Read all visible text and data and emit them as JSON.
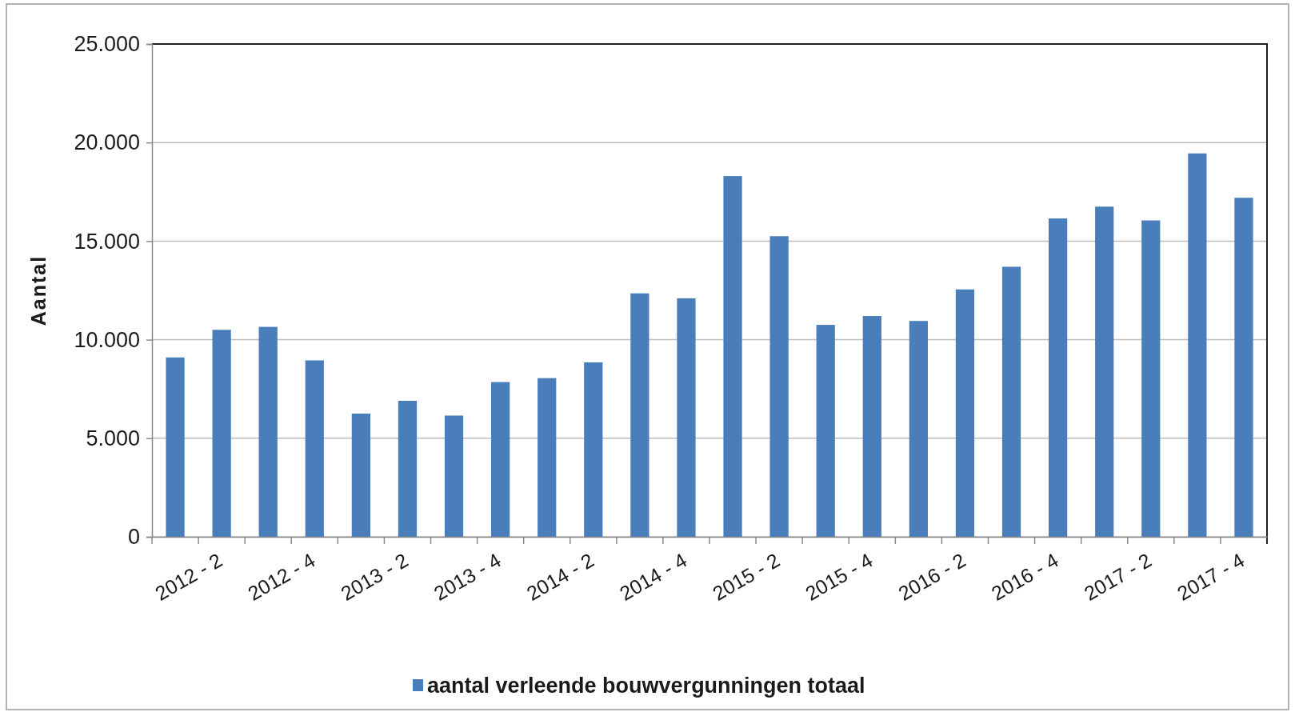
{
  "chart_data": {
    "type": "bar",
    "ylabel": "Aantal",
    "categories": [
      null,
      "2012 - 2",
      null,
      "2012 - 4",
      null,
      "2013 - 2",
      null,
      "2013 - 4",
      null,
      "2014 - 2",
      null,
      "2014 - 4",
      null,
      "2015 - 2",
      null,
      "2015 - 4",
      null,
      "2016 - 2",
      null,
      "2016 - 4",
      null,
      "2017 - 2",
      null,
      "2017 - 4"
    ],
    "series": [
      {
        "name": "aantal verleende bouwvergunningen totaal",
        "color": "#4a7ebb",
        "values": [
          9100,
          10500,
          10650,
          8950,
          6250,
          6900,
          6150,
          7850,
          8050,
          8850,
          12350,
          12100,
          18300,
          15250,
          10750,
          11200,
          10950,
          12550,
          13700,
          16150,
          16750,
          16050,
          19450,
          17200
        ]
      }
    ],
    "ylim": [
      0,
      25000
    ],
    "yticks": [
      0,
      {
        "value": 5000,
        "label": "5.000"
      },
      {
        "value": 10000,
        "label": "10.000"
      },
      {
        "value": 15000,
        "label": "15.000"
      },
      {
        "value": 20000,
        "label": "20.000"
      },
      {
        "value": 25000,
        "label": "25.000"
      }
    ],
    "grid": "y",
    "legend": "bottom"
  }
}
